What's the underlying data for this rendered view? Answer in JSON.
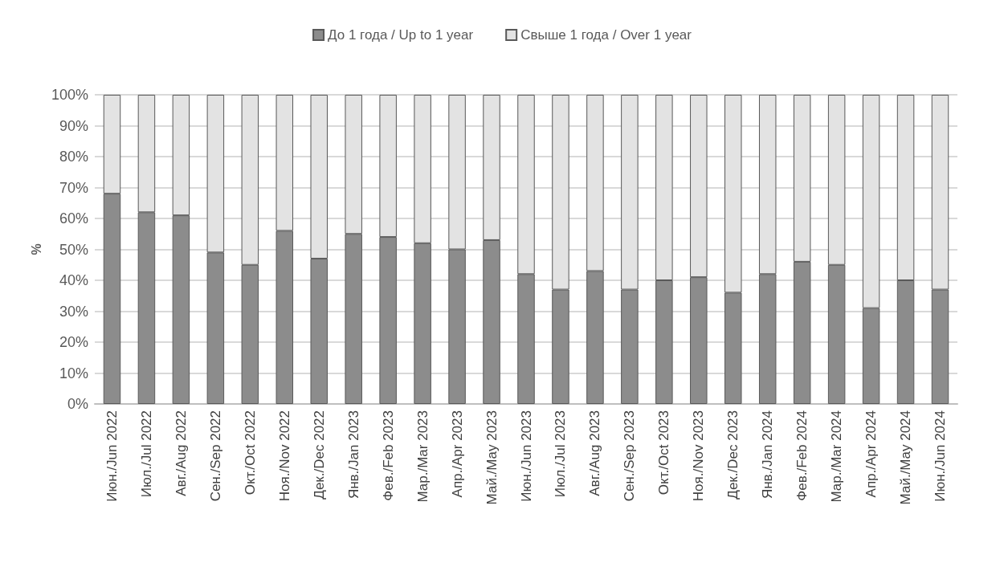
{
  "chart_data": {
    "type": "bar",
    "stacked": true,
    "ylabel": "%",
    "categories": [
      "Июн./Jun 2022",
      "Июл./Jul 2022",
      "Авг./Aug 2022",
      "Сен./Sep 2022",
      "Окт./Oct 2022",
      "Ноя./Nov 2022",
      "Дек./Dec 2022",
      "Янв./Jan 2023",
      "Фев./Feb 2023",
      "Мар./Mar 2023",
      "Апр./Apr 2023",
      "Май./May 2023",
      "Июн./Jun 2023",
      "Июл./Jul 2023",
      "Авг./Aug 2023",
      "Сен./Sep 2023",
      "Окт./Oct 2023",
      "Ноя./Nov 2023",
      "Дек./Dec 2023",
      "Янв./Jan 2024",
      "Фев./Feb 2024",
      "Мар./Mar 2024",
      "Апр./Apr 2024",
      "Май./May 2024",
      "Июн./Jun 2024"
    ],
    "series": [
      {
        "name": "До 1 года / Up to 1 year",
        "color": "#8c8c8c",
        "values": [
          68,
          62,
          61,
          49,
          45,
          56,
          47,
          55,
          54,
          52,
          50,
          53,
          42,
          37,
          43,
          37,
          40,
          41,
          36,
          42,
          46,
          45,
          31,
          40,
          37
        ]
      },
      {
        "name": "Свыше 1 года / Over 1 year",
        "color": "#e3e3e3",
        "values": [
          32,
          38,
          39,
          51,
          55,
          44,
          53,
          45,
          46,
          48,
          50,
          47,
          58,
          63,
          57,
          63,
          60,
          59,
          64,
          58,
          54,
          55,
          69,
          60,
          63
        ]
      }
    ],
    "ylim": [
      0,
      100
    ],
    "yticks": [
      {
        "value": 0,
        "label": "0%"
      },
      {
        "value": 10,
        "label": "10%"
      },
      {
        "value": 20,
        "label": "20%"
      },
      {
        "value": 30,
        "label": "30%"
      },
      {
        "value": 40,
        "label": "40%"
      },
      {
        "value": 50,
        "label": "50%"
      },
      {
        "value": 60,
        "label": "60%"
      },
      {
        "value": 70,
        "label": "70%"
      },
      {
        "value": 80,
        "label": "80%"
      },
      {
        "value": 90,
        "label": "90%"
      },
      {
        "value": 100,
        "label": "100%"
      }
    ],
    "grid": "y",
    "legend": "top"
  }
}
